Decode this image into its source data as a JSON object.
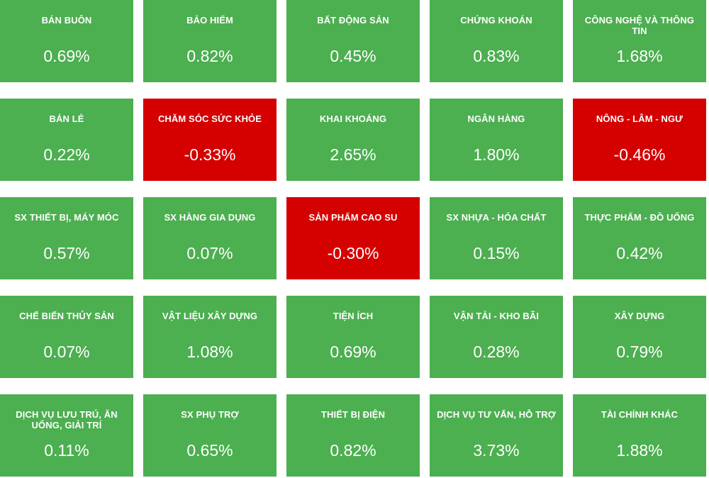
{
  "colors": {
    "up": "#4caf50",
    "down": "#d50000",
    "text": "#ffffff"
  },
  "sectors": [
    {
      "name": "BÁN BUÔN",
      "change": "0.69%"
    },
    {
      "name": "BẢO HIỂM",
      "change": "0.82%"
    },
    {
      "name": "BẤT ĐỘNG SẢN",
      "change": "0.45%"
    },
    {
      "name": "CHỨNG KHOÁN",
      "change": "0.83%"
    },
    {
      "name": "CÔNG NGHỆ VÀ THÔNG TIN",
      "change": "1.68%"
    },
    {
      "name": "BÁN LẺ",
      "change": "0.22%"
    },
    {
      "name": "CHĂM SÓC SỨC KHỎE",
      "change": "-0.33%"
    },
    {
      "name": "KHAI KHOÁNG",
      "change": "2.65%"
    },
    {
      "name": "NGÂN HÀNG",
      "change": "1.80%"
    },
    {
      "name": "NÔNG - LÂM - NGƯ",
      "change": "-0.46%"
    },
    {
      "name": "SX THIẾT BỊ, MÁY MÓC",
      "change": "0.57%"
    },
    {
      "name": "SX HÀNG GIA DỤNG",
      "change": "0.07%"
    },
    {
      "name": "SẢN PHẨM CAO SU",
      "change": "-0.30%"
    },
    {
      "name": "SX NHỰA - HÓA CHẤT",
      "change": "0.15%"
    },
    {
      "name": "THỰC PHẨM - ĐỒ UỐNG",
      "change": "0.42%"
    },
    {
      "name": "CHẾ BIẾN THỦY SẢN",
      "change": "0.07%"
    },
    {
      "name": "VẬT LIỆU XÂY DỰNG",
      "change": "1.08%"
    },
    {
      "name": "TIỆN ÍCH",
      "change": "0.69%"
    },
    {
      "name": "VẬN TẢI - KHO BÃI",
      "change": "0.28%"
    },
    {
      "name": "XÂY DỰNG",
      "change": "0.79%"
    },
    {
      "name": "DỊCH VỤ LƯU TRÚ, ĂN UỐNG, GIẢI TRÍ",
      "change": "0.11%"
    },
    {
      "name": "SX PHỤ TRỢ",
      "change": "0.65%"
    },
    {
      "name": "THIẾT BỊ ĐIỆN",
      "change": "0.82%"
    },
    {
      "name": "DỊCH VỤ TƯ VẤN, HỖ TRỢ",
      "change": "3.73%"
    },
    {
      "name": "TÀI CHÍNH KHÁC",
      "change": "1.88%"
    }
  ]
}
